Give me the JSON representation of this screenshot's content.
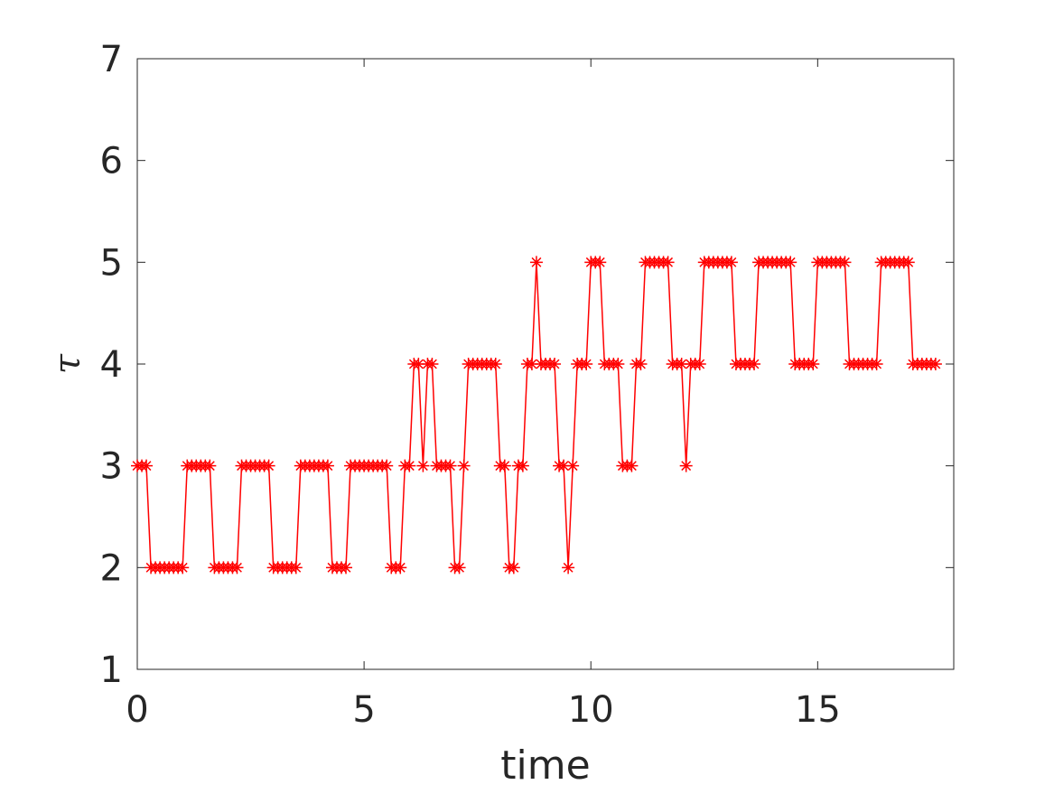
{
  "chart_data": {
    "type": "line",
    "xlabel": "time",
    "ylabel": "τ",
    "color": "#ff0000",
    "marker": "star",
    "xlim": [
      0,
      18
    ],
    "ylim": [
      1,
      7
    ],
    "xticks": [
      0,
      5,
      10,
      15
    ],
    "yticks": [
      1,
      2,
      3,
      4,
      5,
      6,
      7
    ],
    "x": [
      0,
      0.1,
      0.2,
      0.3,
      0.4,
      0.5,
      0.6,
      0.7,
      0.8,
      0.9,
      1,
      1.1,
      1.2,
      1.3,
      1.4,
      1.5,
      1.6,
      1.7,
      1.8,
      1.9,
      2,
      2.1,
      2.2,
      2.3,
      2.4,
      2.5,
      2.6,
      2.7,
      2.8,
      2.9,
      3,
      3.1,
      3.2,
      3.3,
      3.4,
      3.5,
      3.6,
      3.7,
      3.8,
      3.9,
      4,
      4.1,
      4.2,
      4.3,
      4.4,
      4.5,
      4.6,
      4.7,
      4.8,
      4.9,
      5,
      5.1,
      5.2,
      5.3,
      5.4,
      5.5,
      5.6,
      5.7,
      5.8,
      5.9,
      6,
      6.1,
      6.2,
      6.3,
      6.4,
      6.5,
      6.6,
      6.7,
      6.8,
      6.9,
      7,
      7.1,
      7.2,
      7.3,
      7.4,
      7.5,
      7.6,
      7.7,
      7.8,
      7.9,
      8,
      8.1,
      8.2,
      8.3,
      8.4,
      8.5,
      8.6,
      8.7,
      8.8,
      8.9,
      9,
      9.1,
      9.2,
      9.3,
      9.4,
      9.5,
      9.6,
      9.7,
      9.8,
      9.9,
      10,
      10.1,
      10.2,
      10.3,
      10.4,
      10.5,
      10.6,
      10.7,
      10.8,
      10.9,
      11,
      11.1,
      11.2,
      11.3,
      11.4,
      11.5,
      11.6,
      11.7,
      11.8,
      11.9,
      12,
      12.1,
      12.2,
      12.3,
      12.4,
      12.5,
      12.6,
      12.7,
      12.8,
      12.9,
      13,
      13.1,
      13.2,
      13.3,
      13.4,
      13.5,
      13.6,
      13.7,
      13.8,
      13.9,
      14,
      14.1,
      14.2,
      14.3,
      14.4,
      14.5,
      14.6,
      14.7,
      14.8,
      14.9,
      15,
      15.1,
      15.2,
      15.3,
      15.4,
      15.5,
      15.6,
      15.7,
      15.8,
      15.9,
      16,
      16.1,
      16.2,
      16.3,
      16.4,
      16.5,
      16.6,
      16.7,
      16.8,
      16.9,
      17,
      17.1,
      17.2,
      17.3,
      17.4,
      17.5,
      17.6
    ],
    "values": [
      3,
      3,
      3,
      2,
      2,
      2,
      2,
      2,
      2,
      2,
      2,
      3,
      3,
      3,
      3,
      3,
      3,
      2,
      2,
      2,
      2,
      2,
      2,
      3,
      3,
      3,
      3,
      3,
      3,
      3,
      2,
      2,
      2,
      2,
      2,
      2,
      3,
      3,
      3,
      3,
      3,
      3,
      3,
      2,
      2,
      2,
      2,
      3,
      3,
      3,
      3,
      3,
      3,
      3,
      3,
      3,
      2,
      2,
      2,
      3,
      3,
      4,
      4,
      3,
      4,
      4,
      3,
      3,
      3,
      3,
      2,
      2,
      3,
      4,
      4,
      4,
      4,
      4,
      4,
      4,
      3,
      3,
      2,
      2,
      3,
      3,
      4,
      4,
      5,
      4,
      4,
      4,
      4,
      3,
      3,
      2,
      3,
      4,
      4,
      4,
      5,
      5,
      5,
      4,
      4,
      4,
      4,
      3,
      3,
      3,
      4,
      4,
      5,
      5,
      5,
      5,
      5,
      5,
      4,
      4,
      4,
      3,
      4,
      4,
      4,
      5,
      5,
      5,
      5,
      5,
      5,
      5,
      4,
      4,
      4,
      4,
      4,
      5,
      5,
      5,
      5,
      5,
      5,
      5,
      5,
      4,
      4,
      4,
      4,
      4,
      5,
      5,
      5,
      5,
      5,
      5,
      5,
      4,
      4,
      4,
      4,
      4,
      4,
      4,
      5,
      5,
      5,
      5,
      5,
      5,
      5,
      4,
      4,
      4,
      4,
      4,
      4
    ]
  }
}
